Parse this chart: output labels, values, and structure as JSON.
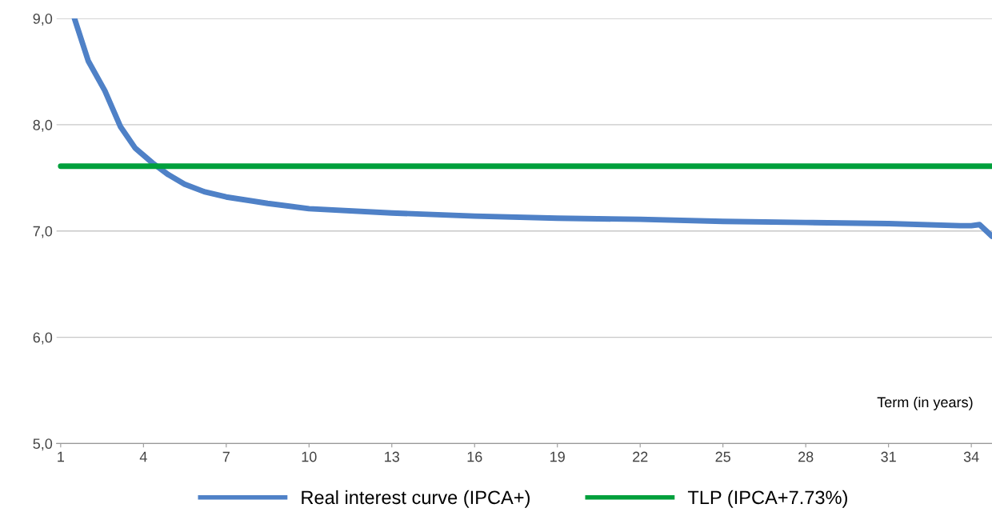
{
  "chart_data": {
    "type": "line",
    "xlabel": "Term (in years)",
    "xlim": [
      0.85,
      34.75
    ],
    "xticks": [
      1,
      4,
      7,
      10,
      13,
      16,
      19,
      22,
      25,
      28,
      31,
      34
    ],
    "ylim": [
      5,
      9
    ],
    "yticks": [
      {
        "value": 5,
        "label": "5,0"
      },
      {
        "value": 6,
        "label": "6,0"
      },
      {
        "value": 7,
        "label": "7,0"
      },
      {
        "value": 8,
        "label": "8,0"
      },
      {
        "value": 9,
        "label": "9,0"
      }
    ],
    "grid": "y",
    "legend": "bottom",
    "marker": "none",
    "line_style": "solid",
    "series": [
      {
        "name": "Real interest curve (IPCA+)",
        "color": "#4f81c7",
        "x": [
          1.5,
          2.0,
          2.6,
          3.17,
          3.7,
          4.33,
          4.9,
          5.49,
          6.2,
          7,
          8.5,
          10,
          13,
          16,
          19,
          22,
          25,
          28,
          31,
          33.6,
          34.0,
          34.3,
          34.75
        ],
        "values": [
          9.0,
          8.6,
          8.32,
          7.98,
          7.78,
          7.64,
          7.53,
          7.44,
          7.37,
          7.32,
          7.26,
          7.21,
          7.17,
          7.14,
          7.12,
          7.11,
          7.09,
          7.08,
          7.07,
          7.05,
          7.05,
          7.06,
          6.95
        ]
      },
      {
        "name": "TLP (IPCA+7.73%)",
        "color": "#00a03c",
        "x": [
          1,
          34.75
        ],
        "values": [
          7.61,
          7.61
        ]
      }
    ]
  }
}
